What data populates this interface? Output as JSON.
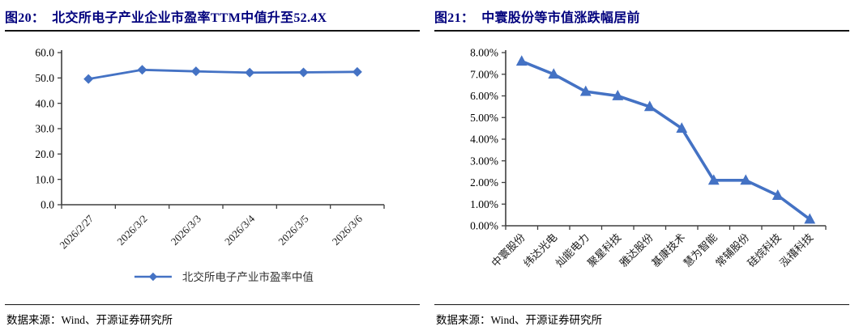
{
  "panels": [
    {
      "title_prefix": "图20：",
      "title": "北交所电子产业企业市盈率TTM中值升至52.4X",
      "source": "数据来源：Wind、开源证券研究所"
    },
    {
      "title_prefix": "图21：",
      "title": "中寰股份等市值涨跌幅居前",
      "source": "数据来源：Wind、开源证券研究所"
    }
  ],
  "chart_data": [
    {
      "type": "line",
      "marker": "diamond",
      "title": "北交所电子产业企业市盈率TTM中值升至52.4X",
      "categories": [
        "2026/2/27",
        "2026/3/2",
        "2026/3/3",
        "2026/3/4",
        "2026/3/5",
        "2026/3/6"
      ],
      "values": [
        49.6,
        53.2,
        52.6,
        52.1,
        52.2,
        52.4
      ],
      "ylim": [
        0,
        60
      ],
      "ytick_step": 10,
      "ytick_labels": [
        "0.0",
        "10.0",
        "20.0",
        "30.0",
        "40.0",
        "50.0",
        "60.0"
      ],
      "xlabel": "",
      "ylabel": "",
      "grid": false,
      "legend": [
        "北交所电子产业市盈率中值"
      ],
      "legend_position": "bottom",
      "line_color": "#4472C4"
    },
    {
      "type": "line",
      "marker": "triangle",
      "title": "中寰股份等市值涨跌幅居前",
      "categories": [
        "中寰股份",
        "纬达光电",
        "灿能电力",
        "聚星科技",
        "雅达股份",
        "基康技术",
        "慧为智能",
        "常辅股份",
        "硅烷科技",
        "泓禧科技"
      ],
      "values": [
        7.6,
        7.0,
        6.2,
        6.0,
        5.5,
        4.5,
        2.1,
        2.1,
        1.4,
        0.3
      ],
      "values_unit": "%",
      "ylim": [
        0,
        8
      ],
      "ytick_step": 1,
      "ytick_labels": [
        "0.00%",
        "1.00%",
        "2.00%",
        "3.00%",
        "4.00%",
        "5.00%",
        "6.00%",
        "7.00%",
        "8.00%"
      ],
      "xlabel": "",
      "ylabel": "",
      "grid": false,
      "legend": null,
      "line_color": "#4472C4"
    }
  ],
  "colors": {
    "accent_line": "#4472C4",
    "title_navy": "#00007d",
    "axis": "#3f3f3f",
    "rule": "#141414"
  }
}
